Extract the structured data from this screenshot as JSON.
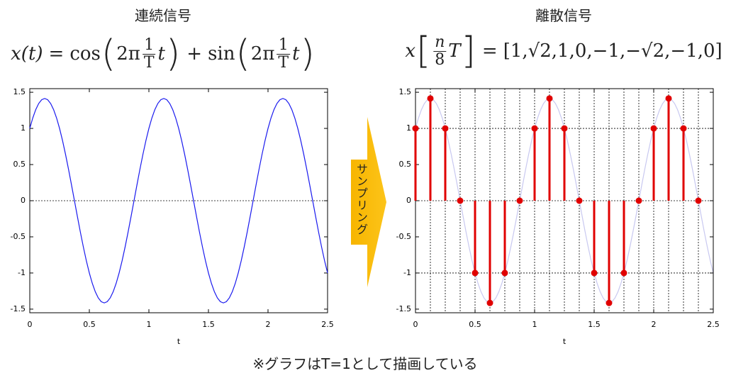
{
  "chart_data": [
    {
      "type": "line",
      "title": "連続信号",
      "xlabel": "t",
      "formula": {
        "lhs": "x(t)",
        "eq": "=",
        "terms": [
          {
            "op": "",
            "fn": "cos",
            "open": "(",
            "coef": "2π",
            "num": "1",
            "den": "T",
            "var": "t",
            "close": ")"
          },
          {
            "op": "+",
            "fn": "sin",
            "open": "(",
            "coef": "2π",
            "num": "1",
            "den": "T",
            "var": "t",
            "close": ")"
          }
        ]
      },
      "x": [
        0,
        0.025,
        0.05,
        0.075,
        0.1,
        0.125,
        0.15,
        0.175,
        0.2,
        0.225,
        0.25,
        0.275,
        0.3,
        0.325,
        0.35,
        0.375,
        0.4,
        0.425,
        0.45,
        0.475,
        0.5,
        0.525,
        0.55,
        0.575,
        0.6,
        0.625,
        0.65,
        0.675,
        0.7,
        0.725,
        0.75,
        0.775,
        0.8,
        0.825,
        0.85,
        0.875,
        0.9,
        0.925,
        0.95,
        0.975,
        1,
        1.025,
        1.05,
        1.075,
        1.1,
        1.125,
        1.15,
        1.175,
        1.2,
        1.225,
        1.25,
        1.275,
        1.3,
        1.325,
        1.35,
        1.375,
        1.4,
        1.425,
        1.45,
        1.475,
        1.5,
        1.525,
        1.55,
        1.575,
        1.6,
        1.625,
        1.65,
        1.675,
        1.7,
        1.725,
        1.75,
        1.775,
        1.8,
        1.825,
        1.85,
        1.875,
        1.9,
        1.925,
        1.95,
        1.975,
        2,
        2.025,
        2.05,
        2.075,
        2.1,
        2.125,
        2.15,
        2.175,
        2.2,
        2.225,
        2.25,
        2.275,
        2.3,
        2.325,
        2.35,
        2.375,
        2.4,
        2.425,
        2.45,
        2.475,
        2.5
      ],
      "series": [
        {
          "color": "#1a1aee",
          "values": [
            1,
            1.144,
            1.26,
            1.345,
            1.397,
            1.414,
            1.397,
            1.345,
            1.26,
            1.144,
            1,
            0.831,
            0.642,
            0.437,
            0.221,
            0,
            -0.221,
            -0.437,
            -0.642,
            -0.831,
            -1,
            -1.144,
            -1.26,
            -1.345,
            -1.397,
            -1.414,
            -1.397,
            -1.345,
            -1.26,
            -1.144,
            -1,
            -0.831,
            -0.642,
            -0.437,
            -0.221,
            0,
            0.221,
            0.437,
            0.642,
            0.831,
            1,
            1.144,
            1.26,
            1.345,
            1.397,
            1.414,
            1.397,
            1.345,
            1.26,
            1.144,
            1,
            0.831,
            0.642,
            0.437,
            0.221,
            0,
            -0.221,
            -0.437,
            -0.642,
            -0.831,
            -1,
            -1.144,
            -1.26,
            -1.345,
            -1.397,
            -1.414,
            -1.397,
            -1.345,
            -1.26,
            -1.144,
            -1,
            -0.831,
            -0.642,
            -0.437,
            -0.221,
            0,
            0.221,
            0.437,
            0.642,
            0.831,
            1,
            1.144,
            1.26,
            1.345,
            1.397,
            1.414,
            1.397,
            1.345,
            1.26,
            1.144,
            1,
            0.831,
            0.642,
            0.437,
            0.221,
            0,
            -0.221,
            -0.437,
            -0.642,
            -0.831,
            -1
          ]
        }
      ],
      "xlim": [
        0,
        2.5
      ],
      "ylim": [
        -1.55,
        1.55
      ],
      "xticks": [
        0,
        0.5,
        1,
        1.5,
        2,
        2.5
      ],
      "yticks": [
        -1.5,
        -1,
        -0.5,
        0,
        0.5,
        1,
        1.5
      ],
      "hlines": [
        0
      ]
    },
    {
      "type": "stem",
      "title": "離散信号",
      "xlabel": "t",
      "formula": {
        "lhs": "x",
        "open": "[",
        "num": "n",
        "den": "8",
        "var": "T",
        "close": "]",
        "eq": "=",
        "rhs": "[1,√2,1,0,−1,−√2,−1,0]"
      },
      "x": [
        0,
        0.125,
        0.25,
        0.375,
        0.5,
        0.625,
        0.75,
        0.875,
        1,
        1.125,
        1.25,
        1.375,
        1.5,
        1.625,
        1.75,
        1.875,
        2,
        2.125,
        2.25,
        2.375
      ],
      "series": [
        {
          "color": "#e00000",
          "values": [
            1,
            1.414,
            1,
            0,
            -1,
            -1.414,
            -1,
            0,
            1,
            1.414,
            1,
            0,
            -1,
            -1.414,
            -1,
            0,
            1,
            1.414,
            1,
            0
          ]
        }
      ],
      "xlim": [
        0,
        2.5
      ],
      "ylim": [
        -1.55,
        1.55
      ],
      "xticks": [
        0,
        0.5,
        1,
        1.5,
        2,
        2.5
      ],
      "yticks": [
        -1.5,
        -1,
        -0.5,
        0,
        0.5,
        1,
        1.5
      ],
      "hlines": [
        -1,
        0,
        1
      ],
      "vgrid": true,
      "background_line_color": "#c8c8f0"
    }
  ],
  "arrow_label": "サンプリング",
  "footnote": "※グラフはT=1として描画している"
}
